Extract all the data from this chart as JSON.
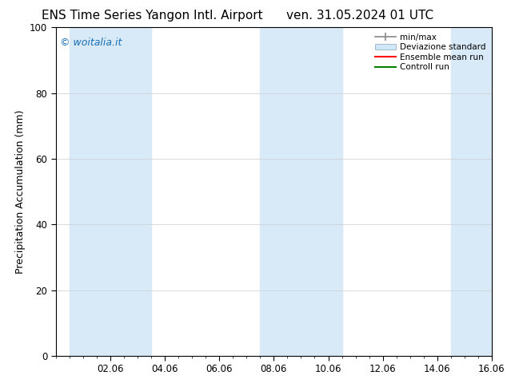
{
  "title_left": "ENS Time Series Yangon Intl. Airport",
  "title_right": "ven. 31.05.2024 01 UTC",
  "ylabel": "Precipitation Accumulation (mm)",
  "watermark": "© woitalia.it",
  "watermark_color": "#1a6eb5",
  "ylim": [
    0,
    100
  ],
  "xlim": [
    0,
    16
  ],
  "xtick_labels": [
    "02.06",
    "04.06",
    "06.06",
    "08.06",
    "10.06",
    "12.06",
    "14.06",
    "16.06"
  ],
  "xtick_positions": [
    2.0,
    4.0,
    6.0,
    8.0,
    10.0,
    12.0,
    14.0,
    16.0
  ],
  "shaded_bands": [
    {
      "x_start": 0.5,
      "x_end": 3.5
    },
    {
      "x_start": 7.5,
      "x_end": 10.5
    },
    {
      "x_start": 14.5,
      "x_end": 16.0
    }
  ],
  "band_color": "#d8eaf8",
  "legend_labels": [
    "min/max",
    "Deviazione standard",
    "Ensemble mean run",
    "Controll run"
  ],
  "legend_colors_line": [
    "#999999",
    "#c0d8ee",
    "#ff0000",
    "#008000"
  ],
  "bg_color": "#ffffff",
  "title_fontsize": 11,
  "tick_fontsize": 8.5,
  "ylabel_fontsize": 9,
  "watermark_fontsize": 9
}
